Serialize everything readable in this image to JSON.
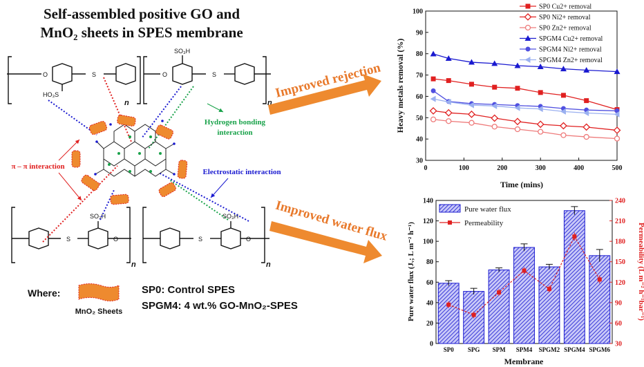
{
  "graphic_title": [
    "Self-assembled positive GO and",
    "MnO₂ sheets in SPES membrane"
  ],
  "chem_labels": {
    "o": "O",
    "s": "S",
    "so3h": "SO₃H",
    "hoo3s": "HO₃S",
    "n": "n"
  },
  "interactions": {
    "hydrogen": [
      "Hydrogen bonding",
      "interaction"
    ],
    "pi": "π – π interaction",
    "electrostatic": "Electrostatic interaction"
  },
  "arrows": {
    "rejection": "Improved rejection",
    "flux": "Improved water flux"
  },
  "legend_key": {
    "where": "Where:",
    "sheet": "MnO₂ Sheets",
    "sp0": "SP0: Control SPES",
    "spgm4": "SPGM4: 4 wt.% GO-MnO₂-SPES"
  },
  "colors": {
    "red": "#e02020",
    "blue": "#1a1ad0",
    "lightblue": "#9ab0f0",
    "bar": "#3a3ad8",
    "orange": "#ee8a2f"
  },
  "chart_data": [
    {
      "type": "line",
      "xlabel": "Time (mins)",
      "ylabel": "Heavy metals removal (%)",
      "xlim": [
        0,
        500
      ],
      "ylim": [
        30,
        100
      ],
      "xticks": [
        0,
        100,
        200,
        300,
        400,
        500
      ],
      "yticks": [
        30,
        40,
        50,
        60,
        70,
        80,
        90,
        100
      ],
      "x": [
        20,
        60,
        120,
        180,
        240,
        300,
        360,
        420,
        500
      ],
      "legend_position": "top-right",
      "series": [
        {
          "name": "SP0 Cu2+ removal",
          "values": [
            68.2,
            67.4,
            65.7,
            64.3,
            63.8,
            61.8,
            60.5,
            58.0,
            53.8
          ],
          "color": "#e02020",
          "marker": "square"
        },
        {
          "name": "SP0 Ni2+  removal",
          "values": [
            53.2,
            52.3,
            51.6,
            49.8,
            48.2,
            46.9,
            46.2,
            45.6,
            44.1
          ],
          "color": "#e02020",
          "marker": "diamond"
        },
        {
          "name": "SP0 Zn2+ removal",
          "values": [
            49.2,
            48.4,
            47.6,
            45.8,
            44.6,
            43.4,
            41.8,
            41.0,
            40.2
          ],
          "color": "#ee7a7a",
          "marker": "hexagon"
        },
        {
          "name": "SPGM4 Cu2+ removal",
          "values": [
            79.9,
            77.8,
            76.0,
            75.4,
            74.4,
            73.9,
            72.9,
            72.3,
            71.6
          ],
          "color": "#1a1ad0",
          "marker": "triangle"
        },
        {
          "name": "SPGM4 Ni2+  removal",
          "values": [
            62.6,
            57.6,
            56.6,
            56.2,
            55.7,
            55.3,
            54.3,
            53.6,
            53.2
          ],
          "color": "#5050e0",
          "marker": "circle"
        },
        {
          "name": "SPGM4 Zn2+ removal",
          "values": [
            58.8,
            57.4,
            55.9,
            55.5,
            54.6,
            54.1,
            52.9,
            52.2,
            51.6
          ],
          "color": "#9ab0f0",
          "marker": "triangle-left"
        }
      ]
    },
    {
      "type": "bar",
      "xlabel": "Membrane",
      "ylabel": "Pure water flux (Jᵥ; L m⁻² h⁻¹)",
      "y2label": "Permeability (L m⁻² h⁻¹bar⁻¹)",
      "categories": [
        "SP0",
        "SPG",
        "SPM",
        "SPM4",
        "SPGM2",
        "SPGM4",
        "SPGM6"
      ],
      "ylim": [
        0,
        140
      ],
      "yticks": [
        0,
        20,
        40,
        60,
        80,
        100,
        120,
        140
      ],
      "y2lim": [
        30,
        240
      ],
      "y2ticks": [
        30,
        60,
        90,
        120,
        150,
        180,
        210,
        240
      ],
      "legend_position": "top-left",
      "series": [
        {
          "name": "Pure water flux",
          "values": [
            59,
            51,
            72,
            94,
            75,
            130,
            86
          ],
          "errors": [
            2.5,
            3,
            2,
            3.5,
            2.5,
            4,
            6
          ],
          "axis": "left"
        },
        {
          "name": "Permeability",
          "values": [
            87,
            72,
            105,
            137,
            110,
            187,
            124
          ],
          "errors": [
            5,
            5,
            5,
            5,
            5,
            6,
            6
          ],
          "axis": "right"
        }
      ]
    }
  ]
}
